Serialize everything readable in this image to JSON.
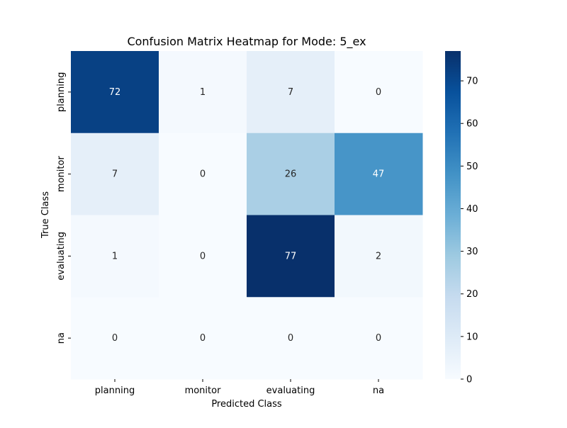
{
  "chart_data": {
    "type": "heatmap",
    "title": "Confusion Matrix Heatmap for Mode: 5_ex",
    "xlabel": "Predicted Class",
    "ylabel": "True Class",
    "x_categories": [
      "planning",
      "monitor",
      "evaluating",
      "na"
    ],
    "y_categories": [
      "planning",
      "monitor",
      "evaluating",
      "na"
    ],
    "values": [
      [
        72,
        1,
        7,
        0
      ],
      [
        7,
        0,
        26,
        47
      ],
      [
        1,
        0,
        77,
        2
      ],
      [
        0,
        0,
        0,
        0
      ]
    ],
    "colorbar": {
      "min": 0,
      "max": 77,
      "ticks": [
        0,
        10,
        20,
        30,
        40,
        50,
        60,
        70
      ]
    },
    "colormap": "Blues",
    "colors": {
      "low": "#f7fbff",
      "high": "#08306b",
      "light_text": "#ffffff",
      "dark_text": "#262626",
      "axis": "#000000"
    }
  }
}
